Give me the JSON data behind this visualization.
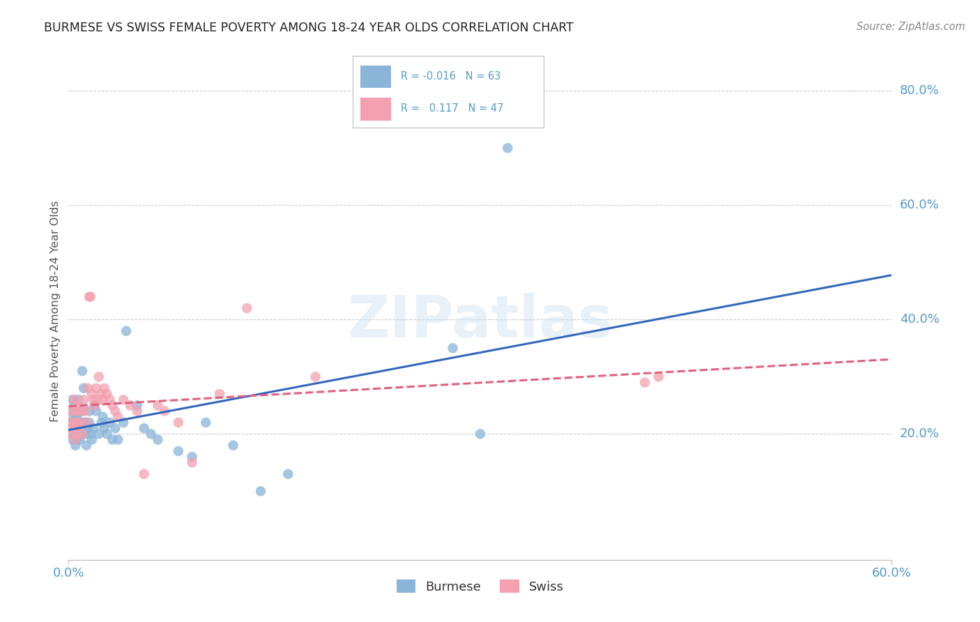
{
  "title": "BURMESE VS SWISS FEMALE POVERTY AMONG 18-24 YEAR OLDS CORRELATION CHART",
  "source": "Source: ZipAtlas.com",
  "ylabel_label": "Female Poverty Among 18-24 Year Olds",
  "xmin": 0.0,
  "xmax": 0.6,
  "ymin": -0.02,
  "ymax": 0.85,
  "watermark_text": "ZIPatlas",
  "burmese_color": "#8ab4d8",
  "swiss_color": "#f4a0b0",
  "trend_blue_color": "#3366bb",
  "trend_pink_color": "#e06080",
  "grid_color": "#cccccc",
  "background_color": "#ffffff",
  "title_color": "#222222",
  "tick_color": "#5599cc",
  "right_yticks": [
    0.2,
    0.4,
    0.6,
    0.8
  ],
  "right_ylabels": [
    "20.0%",
    "40.0%",
    "60.0%",
    "80.0%"
  ],
  "burmese_x": [
    0.001,
    0.002,
    0.002,
    0.003,
    0.003,
    0.003,
    0.004,
    0.004,
    0.004,
    0.005,
    0.005,
    0.005,
    0.005,
    0.006,
    0.006,
    0.006,
    0.007,
    0.007,
    0.007,
    0.008,
    0.008,
    0.008,
    0.009,
    0.009,
    0.01,
    0.01,
    0.011,
    0.011,
    0.012,
    0.013,
    0.013,
    0.014,
    0.015,
    0.015,
    0.016,
    0.017,
    0.018,
    0.019,
    0.02,
    0.022,
    0.024,
    0.025,
    0.026,
    0.028,
    0.03,
    0.032,
    0.034,
    0.036,
    0.04,
    0.042,
    0.05,
    0.055,
    0.06,
    0.065,
    0.08,
    0.09,
    0.1,
    0.12,
    0.14,
    0.16,
    0.28,
    0.3,
    0.32
  ],
  "burmese_y": [
    0.22,
    0.2,
    0.24,
    0.22,
    0.19,
    0.26,
    0.21,
    0.23,
    0.25,
    0.2,
    0.22,
    0.18,
    0.24,
    0.21,
    0.19,
    0.23,
    0.2,
    0.22,
    0.26,
    0.21,
    0.24,
    0.19,
    0.22,
    0.2,
    0.31,
    0.24,
    0.28,
    0.22,
    0.2,
    0.18,
    0.22,
    0.21,
    0.24,
    0.22,
    0.2,
    0.19,
    0.21,
    0.25,
    0.24,
    0.2,
    0.22,
    0.23,
    0.21,
    0.2,
    0.22,
    0.19,
    0.21,
    0.19,
    0.22,
    0.38,
    0.25,
    0.21,
    0.2,
    0.19,
    0.17,
    0.16,
    0.22,
    0.18,
    0.1,
    0.13,
    0.35,
    0.2,
    0.7
  ],
  "swiss_x": [
    0.001,
    0.002,
    0.003,
    0.003,
    0.004,
    0.004,
    0.005,
    0.005,
    0.006,
    0.006,
    0.007,
    0.008,
    0.009,
    0.01,
    0.011,
    0.012,
    0.013,
    0.014,
    0.015,
    0.016,
    0.017,
    0.018,
    0.019,
    0.02,
    0.021,
    0.022,
    0.024,
    0.025,
    0.026,
    0.028,
    0.03,
    0.032,
    0.034,
    0.036,
    0.04,
    0.045,
    0.05,
    0.055,
    0.065,
    0.07,
    0.08,
    0.09,
    0.11,
    0.13,
    0.18,
    0.42,
    0.43
  ],
  "swiss_y": [
    0.22,
    0.2,
    0.24,
    0.21,
    0.22,
    0.26,
    0.19,
    0.24,
    0.22,
    0.2,
    0.25,
    0.22,
    0.24,
    0.2,
    0.26,
    0.24,
    0.22,
    0.28,
    0.44,
    0.44,
    0.27,
    0.26,
    0.25,
    0.28,
    0.26,
    0.3,
    0.27,
    0.26,
    0.28,
    0.27,
    0.26,
    0.25,
    0.24,
    0.23,
    0.26,
    0.25,
    0.24,
    0.13,
    0.25,
    0.24,
    0.22,
    0.15,
    0.27,
    0.42,
    0.3,
    0.29,
    0.3
  ]
}
